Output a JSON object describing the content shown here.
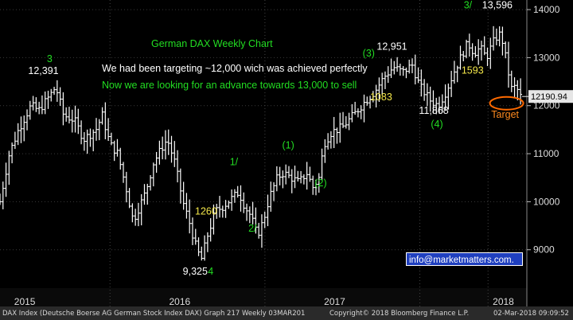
{
  "chart_data": {
    "type": "ohlc",
    "title": "German DAX Weekly Chart",
    "subtitle_lines": [
      {
        "text": "We had been targeting ~12,000 wich was achieved perfectly",
        "color": "#ffffff"
      },
      {
        "text": "Now we are looking for an advance towards 13,000 to sell",
        "color": "#22dd22"
      }
    ],
    "ylim": [
      8200,
      14200
    ],
    "y_ticks": [
      9000,
      10000,
      11000,
      12000,
      13000,
      14000
    ],
    "y_tick_labels": [
      "9000",
      "10000",
      "11000",
      "12000",
      "13000",
      "14000"
    ],
    "last_value_label": "12190.94",
    "x_range": [
      2014.84,
      2018.22
    ],
    "year_labels": [
      {
        "x": 2015.0,
        "label": "2015"
      },
      {
        "x": 2016.0,
        "label": "2016"
      },
      {
        "x": 2017.0,
        "label": "2017"
      },
      {
        "x": 2018.0,
        "label": "2018"
      }
    ],
    "year_dividers": [
      2015.55,
      2016.55,
      2017.55,
      2017.99
    ],
    "bar_color": "#ffffff",
    "anchors": [
      [
        2014.84,
        10000
      ],
      [
        2014.9,
        11000
      ],
      [
        2014.96,
        11500
      ],
      [
        2015.04,
        12000
      ],
      [
        2015.09,
        11900
      ],
      [
        2015.16,
        12200
      ],
      [
        2015.2,
        12391
      ],
      [
        2015.25,
        11800
      ],
      [
        2015.32,
        11700
      ],
      [
        2015.38,
        11300
      ],
      [
        2015.46,
        11500
      ],
      [
        2015.5,
        11800
      ],
      [
        2015.55,
        11200
      ],
      [
        2015.6,
        11000
      ],
      [
        2015.66,
        10200
      ],
      [
        2015.7,
        9600
      ],
      [
        2015.74,
        9900
      ],
      [
        2015.78,
        10200
      ],
      [
        2015.83,
        10800
      ],
      [
        2015.88,
        11100
      ],
      [
        2015.92,
        11300
      ],
      [
        2015.97,
        10800
      ],
      [
        2016.02,
        10000
      ],
      [
        2016.06,
        9600
      ],
      [
        2016.11,
        9000
      ],
      [
        2016.14,
        8800
      ],
      [
        2016.18,
        9300
      ],
      [
        2016.23,
        9800
      ],
      [
        2016.28,
        9900
      ],
      [
        2016.33,
        10050
      ],
      [
        2016.38,
        10200
      ],
      [
        2016.42,
        9900
      ],
      [
        2016.46,
        9700
      ],
      [
        2016.5,
        9300
      ],
      [
        2016.54,
        9600
      ],
      [
        2016.58,
        10100
      ],
      [
        2016.63,
        10500
      ],
      [
        2016.67,
        10600
      ],
      [
        2016.72,
        10500
      ],
      [
        2016.77,
        10400
      ],
      [
        2016.82,
        10600
      ],
      [
        2016.86,
        10300
      ],
      [
        2016.9,
        10500
      ],
      [
        2016.93,
        11200
      ],
      [
        2016.98,
        11450
      ],
      [
        2017.05,
        11550
      ],
      [
        2017.12,
        11800
      ],
      [
        2017.2,
        12100
      ],
      [
        2017.26,
        12300
      ],
      [
        2017.32,
        12600
      ],
      [
        2017.38,
        12800
      ],
      [
        2017.44,
        12700
      ],
      [
        2017.5,
        12850
      ],
      [
        2017.55,
        12400
      ],
      [
        2017.62,
        12100
      ],
      [
        2017.67,
        12000
      ],
      [
        2017.72,
        12300
      ],
      [
        2017.77,
        12700
      ],
      [
        2017.82,
        13050
      ],
      [
        2017.86,
        13300
      ],
      [
        2017.9,
        13100
      ],
      [
        2017.94,
        13200
      ],
      [
        2017.98,
        13000
      ],
      [
        2018.02,
        13300
      ],
      [
        2018.06,
        13500
      ],
      [
        2018.08,
        13400
      ],
      [
        2018.11,
        12900
      ],
      [
        2018.14,
        12350
      ],
      [
        2018.17,
        12400
      ],
      [
        2018.2,
        12190
      ]
    ],
    "annotations": [
      {
        "text": "3",
        "x": 2015.16,
        "y": 12905,
        "color": "#22dd22"
      },
      {
        "text": "12,391",
        "x": 2015.12,
        "y": 12655,
        "color": "#ffffff"
      },
      {
        "text": "9,325",
        "x": 2016.1,
        "y": 8485,
        "color": "#ffffff"
      },
      {
        "text": "4",
        "x": 2016.2,
        "y": 8485,
        "color": "#22dd22"
      },
      {
        "text": "1260",
        "x": 2016.17,
        "y": 9735,
        "color": "#f5e84a"
      },
      {
        "text": "1/",
        "x": 2016.35,
        "y": 10760,
        "color": "#22dd22"
      },
      {
        "text": "2/",
        "x": 2016.47,
        "y": 9375,
        "color": "#22dd22"
      },
      {
        "text": "(1)",
        "x": 2016.7,
        "y": 11110,
        "color": "#22dd22"
      },
      {
        "text": "(2)",
        "x": 2016.91,
        "y": 10320,
        "color": "#22dd22"
      },
      {
        "text": "(3)",
        "x": 2017.22,
        "y": 13025,
        "color": "#22dd22"
      },
      {
        "text": "12,951",
        "x": 2017.37,
        "y": 13165,
        "color": "#ffffff"
      },
      {
        "text": "1083",
        "x": 2017.3,
        "y": 12110,
        "color": "#f5e84a"
      },
      {
        "text": "11,868",
        "x": 2017.64,
        "y": 11830,
        "color": "#ffffff"
      },
      {
        "text": "(4)",
        "x": 2017.66,
        "y": 11545,
        "color": "#22dd22"
      },
      {
        "text": "3/",
        "x": 2017.86,
        "y": 14030,
        "color": "#22dd22"
      },
      {
        "text": "13,596",
        "x": 2018.05,
        "y": 14030,
        "color": "#ffffff"
      },
      {
        "text": "1593",
        "x": 2017.89,
        "y": 12665,
        "color": "#f5e84a"
      },
      {
        "text": "Target",
        "x": 2018.1,
        "y": 11745,
        "color": "#ff8a1e"
      }
    ],
    "target_ellipse": {
      "x": 2018.11,
      "y": 12050,
      "color": "#ff6a00"
    },
    "email": "info@marketmatters.com."
  },
  "footer": {
    "left": "DAX Index (Deutsche Boerse AG German Stock Index DAX) Graph 217  Weekly 03MAR201",
    "center": "Copyright© 2018 Bloomberg Finance L.P.",
    "right": "02-Mar-2018 09:09:52"
  }
}
